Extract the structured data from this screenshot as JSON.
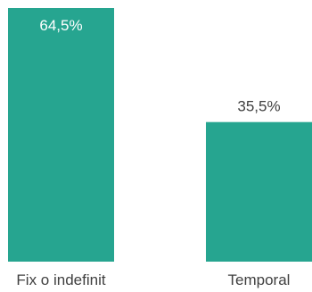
{
  "colors": {
    "bar": "#26a590",
    "label_inside": "#ffffff",
    "label_outside": "#404040"
  },
  "chart_data": {
    "type": "bar",
    "categories": [
      "Fix o indefinit",
      "Temporal"
    ],
    "values": [
      64.5,
      35.5
    ],
    "data_labels": [
      "64,5%",
      "35,5%"
    ],
    "ylim": [
      0,
      64.5
    ],
    "grid": false,
    "legend": "none",
    "title": "",
    "xlabel": "",
    "ylabel": ""
  }
}
